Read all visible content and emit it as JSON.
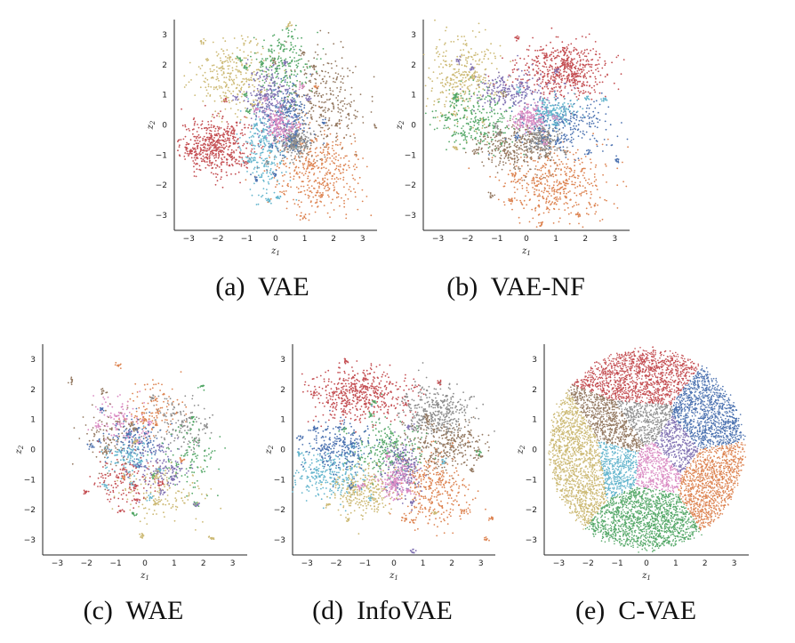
{
  "captions": {
    "a": "(a)  VAE",
    "b": "(b)  VAE-NF",
    "c": "(c)  WAE",
    "d": "(d)  InfoVAE",
    "e": "(e)  C-VAE"
  },
  "palette": {
    "blue": "#4c72b0",
    "orange": "#dd8452",
    "green": "#55a868",
    "red": "#c44e52",
    "purple": "#8172b3",
    "brown": "#937860",
    "pink": "#da8bc3",
    "gray": "#8c8c8c",
    "olive": "#ccb974",
    "cyan": "#64b5cd"
  },
  "chart_data": [
    {
      "type": "scatter",
      "id": "a",
      "xlabel": "z_1",
      "ylabel": "z_2",
      "xlim": [
        -3.5,
        3.5
      ],
      "ylim": [
        -3.5,
        3.5
      ],
      "xticks": [
        -3,
        -2,
        -1,
        0,
        1,
        2,
        3
      ],
      "yticks": [
        -3,
        -2,
        -1,
        0,
        1,
        2,
        3
      ],
      "grid": false,
      "clusters": [
        {
          "color": "red",
          "cx": -2.1,
          "cy": -0.7,
          "sx": 0.6,
          "sy": 0.45,
          "n": 520
        },
        {
          "color": "orange",
          "cx": 1.5,
          "cy": -1.6,
          "sx": 0.8,
          "sy": 0.7,
          "n": 420
        },
        {
          "color": "olive",
          "cx": -1.4,
          "cy": 1.6,
          "sx": 0.7,
          "sy": 0.6,
          "n": 300
        },
        {
          "color": "gray",
          "cx": 0.7,
          "cy": -0.6,
          "sx": 0.25,
          "sy": 0.2,
          "n": 260
        },
        {
          "color": "brown",
          "cx": 1.6,
          "cy": 0.8,
          "sx": 0.7,
          "sy": 0.8,
          "n": 320
        },
        {
          "color": "blue",
          "cx": 0.4,
          "cy": 0.2,
          "sx": 0.4,
          "sy": 0.6,
          "n": 280
        },
        {
          "color": "green",
          "cx": 0.2,
          "cy": 2.0,
          "sx": 0.5,
          "sy": 0.6,
          "n": 220
        },
        {
          "color": "purple",
          "cx": -0.3,
          "cy": 1.0,
          "sx": 0.4,
          "sy": 0.4,
          "n": 220
        },
        {
          "color": "cyan",
          "cx": -0.4,
          "cy": -0.9,
          "sx": 0.4,
          "sy": 0.7,
          "n": 220
        },
        {
          "color": "pink",
          "cx": 0.1,
          "cy": 0.0,
          "sx": 0.2,
          "sy": 0.25,
          "n": 160
        }
      ]
    },
    {
      "type": "scatter",
      "id": "b",
      "xlabel": "z_1",
      "ylabel": "z_2",
      "xlim": [
        -3.5,
        3.5
      ],
      "ylim": [
        -3.5,
        3.5
      ],
      "xticks": [
        -3,
        -2,
        -1,
        0,
        1,
        2,
        3
      ],
      "yticks": [
        -3,
        -2,
        -1,
        0,
        1,
        2,
        3
      ],
      "grid": false,
      "clusters": [
        {
          "color": "red",
          "cx": 1.2,
          "cy": 1.8,
          "sx": 0.75,
          "sy": 0.45,
          "n": 560
        },
        {
          "color": "orange",
          "cx": 1.0,
          "cy": -2.0,
          "sx": 0.9,
          "sy": 0.6,
          "n": 460
        },
        {
          "color": "olive",
          "cx": -2.2,
          "cy": 1.6,
          "sx": 0.6,
          "sy": 0.7,
          "n": 320
        },
        {
          "color": "green",
          "cx": -1.7,
          "cy": 0.2,
          "sx": 0.7,
          "sy": 0.5,
          "n": 280
        },
        {
          "color": "gray",
          "cx": 0.5,
          "cy": -0.5,
          "sx": 0.3,
          "sy": 0.25,
          "n": 260
        },
        {
          "color": "brown",
          "cx": -0.5,
          "cy": -0.8,
          "sx": 0.6,
          "sy": 0.4,
          "n": 260
        },
        {
          "color": "blue",
          "cx": 1.3,
          "cy": 0.0,
          "sx": 0.8,
          "sy": 0.4,
          "n": 260
        },
        {
          "color": "purple",
          "cx": -0.4,
          "cy": 1.1,
          "sx": 0.6,
          "sy": 0.3,
          "n": 220
        },
        {
          "color": "cyan",
          "cx": 0.9,
          "cy": 0.4,
          "sx": 0.4,
          "sy": 0.2,
          "n": 180
        },
        {
          "color": "pink",
          "cx": 0.1,
          "cy": 0.2,
          "sx": 0.3,
          "sy": 0.2,
          "n": 160
        }
      ]
    },
    {
      "type": "scatter",
      "id": "c",
      "xlabel": "z_1",
      "ylabel": "z_2",
      "xlim": [
        -3.5,
        3.5
      ],
      "ylim": [
        -3.5,
        3.5
      ],
      "xticks": [
        -3,
        -2,
        -1,
        0,
        1,
        2,
        3
      ],
      "yticks": [
        -3,
        -2,
        -1,
        0,
        1,
        2,
        3
      ],
      "grid": false,
      "clusters": [
        {
          "color": "orange",
          "cx": 0.3,
          "cy": 1.3,
          "sx": 0.5,
          "sy": 0.5,
          "n": 130
        },
        {
          "color": "gray",
          "cx": 1.2,
          "cy": 0.8,
          "sx": 0.5,
          "sy": 0.5,
          "n": 130
        },
        {
          "color": "pink",
          "cx": -0.9,
          "cy": 1.0,
          "sx": 0.4,
          "sy": 0.4,
          "n": 110
        },
        {
          "color": "brown",
          "cx": -1.3,
          "cy": 0.4,
          "sx": 0.5,
          "sy": 0.5,
          "n": 110
        },
        {
          "color": "blue",
          "cx": -0.2,
          "cy": 0.3,
          "sx": 0.5,
          "sy": 0.4,
          "n": 130
        },
        {
          "color": "cyan",
          "cx": -0.6,
          "cy": -0.2,
          "sx": 0.4,
          "sy": 0.3,
          "n": 110
        },
        {
          "color": "red",
          "cx": -0.8,
          "cy": -1.0,
          "sx": 0.6,
          "sy": 0.4,
          "n": 130
        },
        {
          "color": "green",
          "cx": 1.6,
          "cy": -0.3,
          "sx": 0.5,
          "sy": 0.6,
          "n": 110
        },
        {
          "color": "olive",
          "cx": 0.6,
          "cy": -1.5,
          "sx": 0.7,
          "sy": 0.5,
          "n": 140
        },
        {
          "color": "purple",
          "cx": 0.5,
          "cy": -0.6,
          "sx": 0.5,
          "sy": 0.4,
          "n": 110
        }
      ]
    },
    {
      "type": "scatter",
      "id": "d",
      "xlabel": "z_1",
      "ylabel": "z_2",
      "xlim": [
        -3.5,
        3.5
      ],
      "ylim": [
        -3.5,
        3.5
      ],
      "xticks": [
        -3,
        -2,
        -1,
        0,
        1,
        2,
        3
      ],
      "yticks": [
        -3,
        -2,
        -1,
        0,
        1,
        2,
        3
      ],
      "grid": false,
      "clusters": [
        {
          "color": "red",
          "cx": -1.2,
          "cy": 1.8,
          "sx": 0.8,
          "sy": 0.45,
          "n": 520
        },
        {
          "color": "gray",
          "cx": 1.4,
          "cy": 1.2,
          "sx": 0.6,
          "sy": 0.45,
          "n": 380
        },
        {
          "color": "brown",
          "cx": 1.8,
          "cy": 0.1,
          "sx": 0.7,
          "sy": 0.4,
          "n": 300
        },
        {
          "color": "orange",
          "cx": 1.4,
          "cy": -1.3,
          "sx": 0.6,
          "sy": 0.6,
          "n": 340
        },
        {
          "color": "cyan",
          "cx": -2.2,
          "cy": -0.8,
          "sx": 0.7,
          "sy": 0.4,
          "n": 300
        },
        {
          "color": "olive",
          "cx": -1.0,
          "cy": -1.4,
          "sx": 0.5,
          "sy": 0.4,
          "n": 260
        },
        {
          "color": "green",
          "cx": -0.3,
          "cy": 0.0,
          "sx": 0.6,
          "sy": 0.5,
          "n": 240
        },
        {
          "color": "blue",
          "cx": -1.9,
          "cy": 0.1,
          "sx": 0.6,
          "sy": 0.4,
          "n": 260
        },
        {
          "color": "purple",
          "cx": 0.3,
          "cy": -0.6,
          "sx": 0.3,
          "sy": 0.5,
          "n": 200
        },
        {
          "color": "pink",
          "cx": 0.1,
          "cy": -1.0,
          "sx": 0.3,
          "sy": 0.3,
          "n": 160
        }
      ]
    },
    {
      "type": "scatter",
      "id": "e",
      "xlabel": "z_1",
      "ylabel": "z_2",
      "xlim": [
        -3.5,
        3.5
      ],
      "ylim": [
        -3.5,
        3.5
      ],
      "xticks": [
        -3,
        -2,
        -1,
        0,
        1,
        2,
        3
      ],
      "yticks": [
        -3,
        -2,
        -1,
        0,
        1,
        2,
        3
      ],
      "grid": false,
      "disk_radius": 3.3,
      "regions": [
        {
          "color": "red",
          "cx": 0.0,
          "cy": 2.3
        },
        {
          "color": "olive",
          "cx": -2.2,
          "cy": -0.5
        },
        {
          "color": "orange",
          "cx": 2.2,
          "cy": -0.8
        },
        {
          "color": "green",
          "cx": 0.0,
          "cy": -2.2
        },
        {
          "color": "blue",
          "cx": 1.9,
          "cy": 0.9
        },
        {
          "color": "gray",
          "cx": -0.1,
          "cy": 0.8
        },
        {
          "color": "purple",
          "cx": 0.9,
          "cy": 0.1
        },
        {
          "color": "pink",
          "cx": 0.3,
          "cy": -0.4
        },
        {
          "color": "cyan",
          "cx": -0.9,
          "cy": -0.3
        },
        {
          "color": "brown",
          "cx": -0.7,
          "cy": 0.4
        }
      ],
      "n": 9000
    }
  ]
}
